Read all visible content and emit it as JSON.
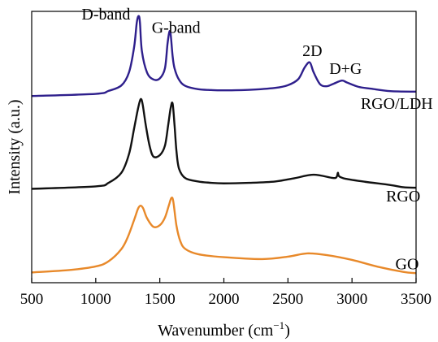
{
  "chart_data": {
    "type": "line",
    "xlabel": "Wavenumber (cm",
    "xlabel_sup": "−1",
    "xlabel_close": ")",
    "ylabel": "Intensity (a.u.)",
    "xlim": [
      500,
      3500
    ],
    "ylim": [
      0,
      100
    ],
    "xticks": [
      500,
      1000,
      1500,
      2000,
      2500,
      3000,
      3500
    ],
    "grid": false,
    "legend": "none",
    "series": [
      {
        "name": "RGO/LDH",
        "color": "#2e1f8c",
        "points": [
          [
            500,
            68.8
          ],
          [
            1000,
            69.6
          ],
          [
            1100,
            70.7
          ],
          [
            1200,
            72.7
          ],
          [
            1260,
            77.6
          ],
          [
            1300,
            87
          ],
          [
            1320,
            95.8
          ],
          [
            1335,
            98.3
          ],
          [
            1345,
            95.8
          ],
          [
            1360,
            85.4
          ],
          [
            1400,
            77.5
          ],
          [
            1450,
            74.9
          ],
          [
            1500,
            75.3
          ],
          [
            1540,
            79
          ],
          [
            1560,
            88
          ],
          [
            1575,
            92.5
          ],
          [
            1585,
            91.4
          ],
          [
            1600,
            83.5
          ],
          [
            1615,
            79
          ],
          [
            1650,
            74.8
          ],
          [
            1700,
            72.5
          ],
          [
            1800,
            71.3
          ],
          [
            1900,
            71
          ],
          [
            2000,
            70.9
          ],
          [
            2200,
            71.1
          ],
          [
            2400,
            71.8
          ],
          [
            2500,
            72.8
          ],
          [
            2580,
            75
          ],
          [
            2630,
            79.3
          ],
          [
            2670,
            81.2
          ],
          [
            2700,
            77.6
          ],
          [
            2750,
            73.2
          ],
          [
            2800,
            72.4
          ],
          [
            2850,
            73.2
          ],
          [
            2920,
            74.5
          ],
          [
            2960,
            73.8
          ],
          [
            3050,
            72.2
          ],
          [
            3150,
            71.5
          ],
          [
            3300,
            70.6
          ],
          [
            3500,
            70.4
          ]
        ]
      },
      {
        "name": "RGO",
        "color": "#111111",
        "points": [
          [
            500,
            34.6
          ],
          [
            1000,
            35.5
          ],
          [
            1100,
            36.8
          ],
          [
            1200,
            40.5
          ],
          [
            1260,
            47.5
          ],
          [
            1300,
            57
          ],
          [
            1330,
            64.2
          ],
          [
            1350,
            67.6
          ],
          [
            1365,
            66
          ],
          [
            1390,
            58.2
          ],
          [
            1420,
            50.5
          ],
          [
            1450,
            46.5
          ],
          [
            1500,
            47
          ],
          [
            1540,
            50.5
          ],
          [
            1565,
            58
          ],
          [
            1585,
            64.5
          ],
          [
            1600,
            66
          ],
          [
            1615,
            58
          ],
          [
            1630,
            48.5
          ],
          [
            1650,
            42
          ],
          [
            1700,
            38.5
          ],
          [
            1800,
            37.3
          ],
          [
            1900,
            36.8
          ],
          [
            2000,
            36.6
          ],
          [
            2200,
            36.8
          ],
          [
            2400,
            37.3
          ],
          [
            2550,
            38.5
          ],
          [
            2700,
            39.8
          ],
          [
            2850,
            38.6
          ],
          [
            2880,
            39
          ],
          [
            2890,
            40.5
          ],
          [
            2900,
            39.2
          ],
          [
            2950,
            38.3
          ],
          [
            3100,
            37.2
          ],
          [
            3300,
            36
          ],
          [
            3400,
            35.2
          ],
          [
            3500,
            35
          ]
        ]
      },
      {
        "name": "GO",
        "color": "#e8892a",
        "points": [
          [
            500,
            3.8
          ],
          [
            800,
            4.7
          ],
          [
            1000,
            6
          ],
          [
            1100,
            7.9
          ],
          [
            1200,
            12.4
          ],
          [
            1250,
            16.8
          ],
          [
            1300,
            23.2
          ],
          [
            1330,
            27.3
          ],
          [
            1350,
            28.4
          ],
          [
            1370,
            27.4
          ],
          [
            1400,
            23.8
          ],
          [
            1450,
            20.6
          ],
          [
            1500,
            21.2
          ],
          [
            1540,
            24
          ],
          [
            1570,
            28.4
          ],
          [
            1590,
            31.2
          ],
          [
            1605,
            30
          ],
          [
            1630,
            21
          ],
          [
            1660,
            15.3
          ],
          [
            1700,
            12.4
          ],
          [
            1800,
            10.5
          ],
          [
            2000,
            9.4
          ],
          [
            2300,
            8.7
          ],
          [
            2500,
            9.6
          ],
          [
            2650,
            10.8
          ],
          [
            2800,
            10.2
          ],
          [
            3000,
            8.4
          ],
          [
            3200,
            5.9
          ],
          [
            3400,
            4
          ],
          [
            3500,
            3.5
          ]
        ]
      }
    ],
    "annotations": [
      {
        "text": "D-band",
        "x": 1080,
        "y": 97
      },
      {
        "text": "G-band",
        "x": 1627,
        "y": 92
      },
      {
        "text": "2D",
        "x": 2690,
        "y": 83.5
      },
      {
        "text": "D+G",
        "x": 2950,
        "y": 77
      },
      {
        "text": "RGO/LDH",
        "x": 3350,
        "y": 64
      },
      {
        "text": "RGO",
        "x": 3400,
        "y": 30
      },
      {
        "text": "GO",
        "x": 3430,
        "y": 5
      }
    ]
  }
}
